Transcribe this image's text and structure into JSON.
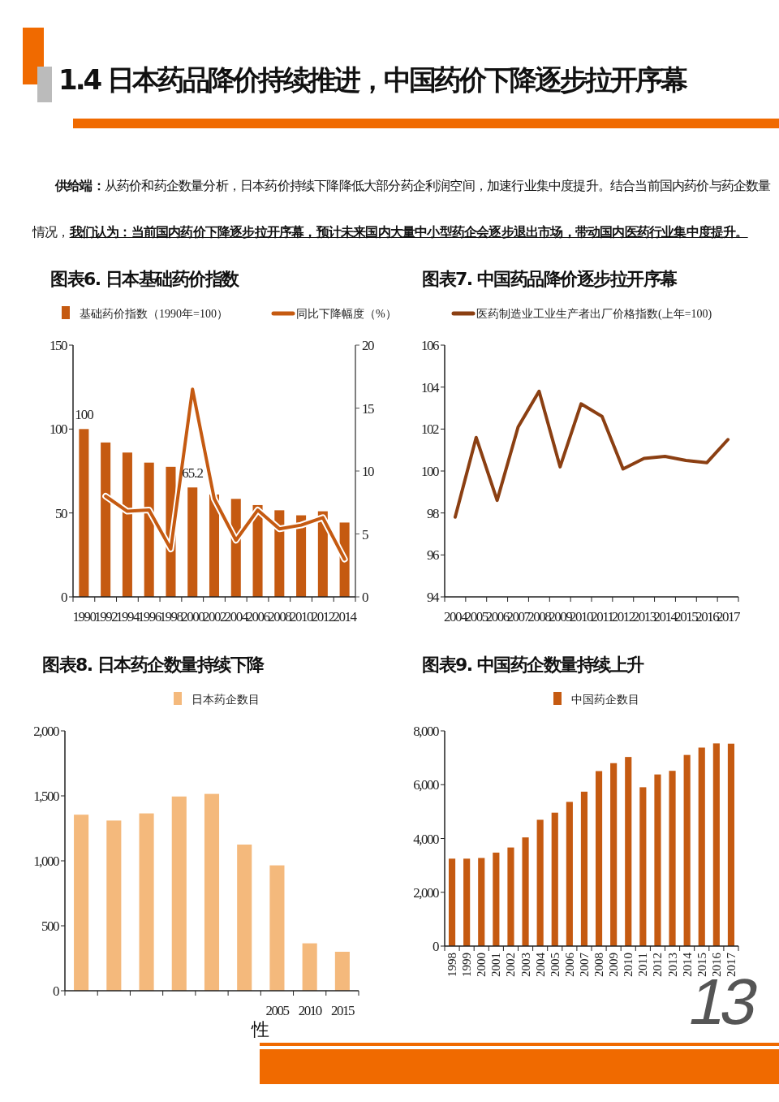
{
  "chart_data": [
    {
      "type": "other",
      "title": "1.4 日本药品降价持续推进，中国药价下降逐步拉开序幕",
      "annotations": [
        "供给端：",
        "从药价和药企数量分析，日本药价持续下降降低大部分药企利润空间，加速行业集中度提升。结合当前国内药价与药企数量情况，",
        "我们认为：当前国内药价下降逐步拉开序幕，预计未来国内大量中小型药企会逐步退出市场，带动国内医药行业集中度提升。",
        "13"
      ]
    },
    {
      "type": "bar",
      "title": "图表6. 日本基础药价指数",
      "categories": [
        "1990",
        "1992",
        "1994",
        "1996",
        "1998",
        "2000",
        "2002",
        "2004",
        "2006",
        "2008",
        "2010",
        "2012",
        "2014"
      ],
      "series": [
        {
          "name": "基础药价指数（1990年=100）",
          "color": "#c55a11",
          "values": [
            100,
            92,
            86,
            80,
            77.5,
            65.2,
            61,
            58.4,
            54.7,
            51.6,
            48.6,
            51,
            44.3
          ]
        },
        {
          "name": "同比下降幅度（%）",
          "type": "line",
          "axis": "y2",
          "color": "#c55a11",
          "values": [
            null,
            8.0,
            6.8,
            6.9,
            3.8,
            16.5,
            7.8,
            4.5,
            6.9,
            5.4,
            5.7,
            6.3,
            3.0
          ]
        }
      ],
      "ylim": [
        0,
        150
      ],
      "yticks": [
        0,
        50,
        100,
        150
      ],
      "y2lim": [
        0,
        20
      ],
      "y2ticks": [
        0,
        5,
        10,
        15,
        20
      ],
      "legend": "top",
      "annotations": [
        {
          "text": "100",
          "x": "1990",
          "y": 100
        },
        {
          "text": "65.2",
          "x": "2000",
          "y": 65.2
        }
      ]
    },
    {
      "type": "line",
      "title": "图表7. 中国药品降价逐步拉开序幕",
      "categories": [
        "2004",
        "2005",
        "2006",
        "2007",
        "2008",
        "2009",
        "2010",
        "2011",
        "2012",
        "2013",
        "2014",
        "2015",
        "2016",
        "2017"
      ],
      "series": [
        {
          "name": "医药制造业工业生产者出厂价格指数(上年=100)",
          "color": "#8b3f12",
          "values": [
            97.8,
            101.6,
            98.6,
            102.1,
            103.8,
            100.2,
            103.2,
            102.6,
            100.1,
            100.6,
            100.7,
            100.5,
            100.4,
            101.5
          ]
        }
      ],
      "ylim": [
        94,
        106
      ],
      "yticks": [
        94,
        96,
        98,
        100,
        102,
        104,
        106
      ],
      "legend": "top"
    },
    {
      "type": "bar",
      "title": "图表8. 日本药企数量持续下降",
      "categories": [
        null,
        null,
        null,
        null,
        null,
        null,
        "2005",
        "2010",
        "2015"
      ],
      "series": [
        {
          "name": "日本药企数目",
          "color": "#f4b97c",
          "values": [
            1355,
            1310,
            1365,
            1495,
            1515,
            1125,
            965,
            365,
            300
          ]
        }
      ],
      "ylim": [
        0,
        2000
      ],
      "yticks": [
        0,
        500,
        {
          "value": 1000,
          "label": "1,000"
        },
        {
          "value": 1500,
          "label": "1,500"
        },
        {
          "value": 2000,
          "label": "2,000"
        }
      ],
      "legend": "top",
      "annotations": [
        "性"
      ]
    },
    {
      "type": "bar",
      "title": "图表9. 中国药企数量持续上升",
      "categories": [
        "1998",
        "1999",
        "2000",
        "2001",
        "2002",
        "2003",
        "2004",
        "2005",
        "2006",
        "2007",
        "2008",
        "2009",
        "2010",
        "2011",
        "2012",
        "2013",
        "2014",
        "2015",
        "2016",
        "2017"
      ],
      "series": [
        {
          "name": "中国药企数目",
          "color": "#c55a11",
          "values": [
            3250,
            3250,
            3275,
            3475,
            3665,
            4040,
            4695,
            4960,
            5360,
            5740,
            6505,
            6800,
            7030,
            5905,
            6380,
            6515,
            7105,
            7380,
            7535,
            7525
          ]
        }
      ],
      "ylim": [
        0,
        8000
      ],
      "yticks": [
        0,
        {
          "value": 2000,
          "label": "2,000"
        },
        {
          "value": 4000,
          "label": "4,000"
        },
        {
          "value": 6000,
          "label": "6,000"
        },
        {
          "value": 8000,
          "label": "8,000"
        }
      ],
      "legend": "top"
    }
  ]
}
